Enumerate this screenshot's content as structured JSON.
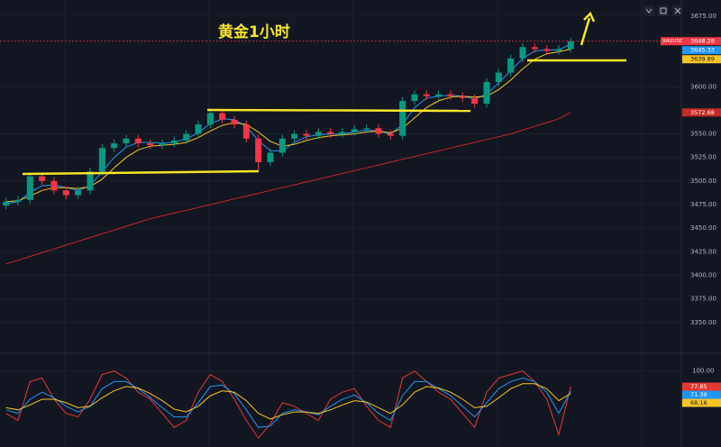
{
  "chart_data": {
    "type": "candlestick",
    "title": "黄金1小时",
    "symbol": "XAUUSD",
    "up_color": "#089981",
    "down_color": "#f23645",
    "grid": true,
    "ylim": [
      3324,
      3692
    ],
    "yticks": [
      {
        "value": 3350,
        "label": "3350.00"
      },
      {
        "value": 3375,
        "label": "3375.00"
      },
      {
        "value": 3400,
        "label": "3400.00"
      },
      {
        "value": 3425,
        "label": "3425.00"
      },
      {
        "value": 3450,
        "label": "3450.00"
      },
      {
        "value": 3475,
        "label": "3475.00"
      },
      {
        "value": 3500,
        "label": "3500.00"
      },
      {
        "value": 3525,
        "label": "3525.00"
      },
      {
        "value": 3550,
        "label": "3550.00"
      },
      {
        "value": 3600,
        "label": "3600.00"
      },
      {
        "value": 3675,
        "label": "3675.00"
      }
    ],
    "open": [
      3474,
      3478,
      3480,
      3505,
      3500,
      3490,
      3485,
      3490,
      3510,
      3535,
      3540,
      3545,
      3540,
      3538,
      3540,
      3543,
      3550,
      3560,
      3572,
      3565,
      3560,
      3545,
      3520,
      3530,
      3545,
      3550,
      3548,
      3552,
      3550,
      3552,
      3555,
      3556,
      3550,
      3548,
      3585,
      3592,
      3590,
      3592,
      3590,
      3588,
      3582,
      3605,
      3615,
      3630,
      3642,
      3640,
      3638,
      3640
    ],
    "high": [
      3482,
      3484,
      3509,
      3509,
      3504,
      3494,
      3494,
      3514,
      3539,
      3544,
      3549,
      3549,
      3544,
      3544,
      3547,
      3554,
      3564,
      3576,
      3576,
      3569,
      3564,
      3549,
      3534,
      3549,
      3554,
      3554,
      3556,
      3556,
      3556,
      3559,
      3560,
      3560,
      3554,
      3589,
      3596,
      3596,
      3596,
      3596,
      3594,
      3592,
      3609,
      3619,
      3634,
      3646,
      3646,
      3644,
      3644,
      3652
    ],
    "low": [
      3470,
      3474,
      3476,
      3496,
      3486,
      3481,
      3481,
      3486,
      3506,
      3531,
      3536,
      3536,
      3534,
      3534,
      3536,
      3539,
      3546,
      3556,
      3561,
      3556,
      3541,
      3510,
      3516,
      3526,
      3541,
      3544,
      3544,
      3546,
      3546,
      3548,
      3551,
      3546,
      3544,
      3544,
      3581,
      3586,
      3586,
      3586,
      3584,
      3578,
      3578,
      3601,
      3611,
      3626,
      3636,
      3634,
      3634,
      3636
    ],
    "close": [
      3478,
      3480,
      3505,
      3500,
      3490,
      3485,
      3490,
      3510,
      3535,
      3540,
      3545,
      3540,
      3538,
      3540,
      3543,
      3550,
      3560,
      3572,
      3565,
      3560,
      3545,
      3520,
      3530,
      3545,
      3550,
      3548,
      3552,
      3550,
      3552,
      3555,
      3556,
      3550,
      3548,
      3585,
      3592,
      3590,
      3592,
      3590,
      3588,
      3582,
      3605,
      3615,
      3630,
      3642,
      3640,
      3638,
      3640,
      3648.28
    ],
    "series": [
      {
        "color": "#2196f3",
        "values": [
          3476,
          3478,
          3488,
          3495,
          3496,
          3493,
          3490,
          3495,
          3510,
          3525,
          3536,
          3541,
          3541,
          3540,
          3541,
          3545,
          3551,
          3561,
          3566,
          3565,
          3558,
          3543,
          3532,
          3532,
          3541,
          3547,
          3549,
          3550,
          3550,
          3552,
          3554,
          3553,
          3550,
          3560,
          3578,
          3588,
          3590,
          3591,
          3590,
          3587,
          3592,
          3604,
          3617,
          3630,
          3638,
          3639,
          3639,
          3645.33
        ]
      },
      {
        "color": "#f7c325",
        "values": [
          3478,
          3479,
          3484,
          3490,
          3493,
          3493,
          3492,
          3494,
          3502,
          3514,
          3525,
          3533,
          3537,
          3538,
          3539,
          3541,
          3546,
          3553,
          3559,
          3562,
          3560,
          3552,
          3542,
          3537,
          3539,
          3543,
          3546,
          3548,
          3549,
          3550,
          3552,
          3553,
          3551,
          3556,
          3567,
          3578,
          3585,
          3589,
          3590,
          3589,
          3590,
          3597,
          3607,
          3619,
          3629,
          3635,
          3637,
          3639.89
        ]
      },
      {
        "color": "#c62828",
        "values": [
          3412,
          3416,
          3420,
          3424,
          3428,
          3432,
          3436,
          3440,
          3444,
          3448,
          3452,
          3456,
          3460,
          3463,
          3466,
          3469,
          3472,
          3475,
          3478,
          3481,
          3484,
          3487,
          3490,
          3493,
          3496,
          3499,
          3502,
          3505,
          3508,
          3511,
          3514,
          3517,
          3520,
          3523,
          3526,
          3529,
          3532,
          3535,
          3538,
          3541,
          3544,
          3547,
          3550,
          3554,
          3558,
          3562,
          3566,
          3572.68
        ]
      }
    ],
    "indicator": {
      "ylim": [
        0,
        120
      ],
      "yticks": [
        {
          "value": 100,
          "label": "100.00"
        }
      ],
      "series": [
        {
          "color": "#e53935",
          "values": [
            40,
            30,
            85,
            90,
            60,
            40,
            35,
            60,
            95,
            100,
            90,
            70,
            60,
            40,
            20,
            30,
            70,
            95,
            85,
            60,
            30,
            5,
            25,
            55,
            50,
            40,
            30,
            60,
            70,
            75,
            50,
            30,
            20,
            90,
            100,
            85,
            70,
            60,
            40,
            20,
            70,
            90,
            95,
            100,
            85,
            60,
            10,
            77.85
          ]
        },
        {
          "color": "#2196f3",
          "values": [
            45,
            40,
            60,
            70,
            62,
            50,
            42,
            50,
            75,
            85,
            85,
            75,
            62,
            48,
            35,
            35,
            55,
            78,
            80,
            68,
            45,
            20,
            22,
            40,
            45,
            42,
            38,
            50,
            60,
            66,
            55,
            40,
            30,
            65,
            85,
            85,
            75,
            65,
            50,
            35,
            55,
            75,
            85,
            90,
            85,
            70,
            40,
            71.39
          ]
        },
        {
          "color": "#f7c325",
          "values": [
            48,
            45,
            52,
            60,
            60,
            55,
            48,
            50,
            62,
            72,
            78,
            76,
            68,
            58,
            46,
            42,
            50,
            65,
            72,
            70,
            58,
            40,
            32,
            38,
            42,
            42,
            40,
            45,
            52,
            58,
            56,
            48,
            40,
            52,
            70,
            78,
            76,
            70,
            60,
            48,
            50,
            62,
            75,
            82,
            82,
            75,
            58,
            68.16
          ]
        }
      ]
    }
  }
}
